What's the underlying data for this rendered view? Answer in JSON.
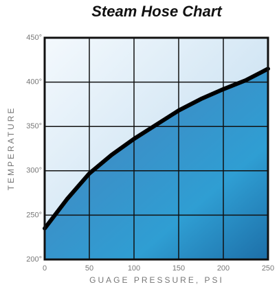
{
  "chart_data": {
    "type": "line",
    "title": "Steam Hose Chart",
    "x_label": "GUAGE PRESSURE, PSI",
    "y_label": "TEMPERATURE",
    "x": [
      0,
      25,
      50,
      75,
      100,
      125,
      150,
      175,
      200,
      225,
      250
    ],
    "series": [
      {
        "color": "#000000",
        "values": [
          235,
          268,
          297,
          318,
          336,
          352,
          368,
          381,
          392,
          402,
          415
        ]
      }
    ],
    "xlim": [
      0,
      250
    ],
    "xticks": [
      0,
      50,
      100,
      150,
      200,
      250
    ],
    "ylim": [
      200,
      450
    ],
    "yticks": [
      {
        "value": 200,
        "label": "200°"
      },
      {
        "value": 250,
        "label": "250°"
      },
      {
        "value": 300,
        "label": "300°"
      },
      {
        "value": 350,
        "label": "350°"
      },
      {
        "value": 400,
        "label": "400°"
      },
      {
        "value": 450,
        "label": "450°"
      }
    ],
    "grid": true
  }
}
